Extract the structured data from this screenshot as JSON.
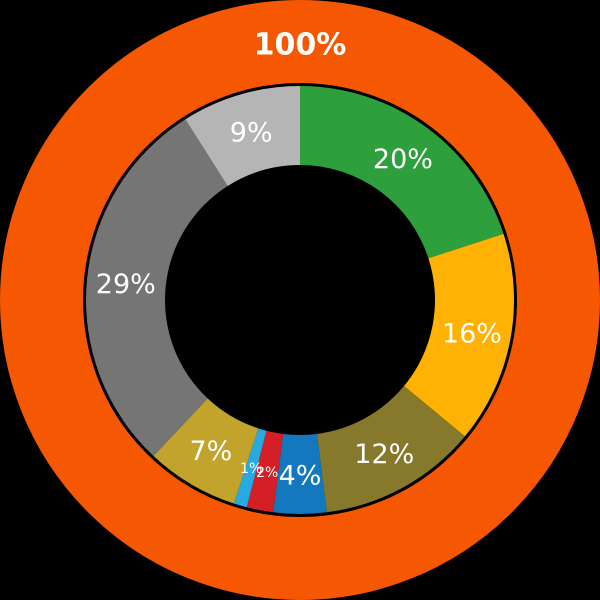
{
  "background_color": "#000000",
  "label_color": "#FFFFFF",
  "chart_data": {
    "type": "pie",
    "variant": "two-ring-donut",
    "title": "",
    "legend": "none",
    "direction": "clockwise",
    "start_angle_deg": 0,
    "outer_ring": {
      "label": "100%",
      "value": 100,
      "color": "#F55703"
    },
    "inner_ring": {
      "segments": [
        {
          "label": "20%",
          "value": 20,
          "color": "#2D9F3D"
        },
        {
          "label": "16%",
          "value": 16,
          "color": "#FFB204"
        },
        {
          "label": "12%",
          "value": 12,
          "color": "#87792B"
        },
        {
          "label": "4%",
          "value": 4,
          "color": "#1478BE"
        },
        {
          "label": "2%",
          "value": 2,
          "color": "#D41F26"
        },
        {
          "label": "1%",
          "value": 1,
          "color": "#27AAE1"
        },
        {
          "label": "7%",
          "value": 7,
          "color": "#C2A42D"
        },
        {
          "label": "29%",
          "value": 29,
          "color": "#757575"
        },
        {
          "label": "9%",
          "value": 9,
          "color": "#B5B5B5"
        }
      ]
    },
    "geometry": {
      "center": [
        300,
        300
      ],
      "outer_ring_outer_radius": 300,
      "outer_ring_inner_radius": 217,
      "inner_ring_outer_radius": 214,
      "inner_ring_inner_radius": 135,
      "segment_label_radius": 175,
      "outer_label_radius": 256
    }
  }
}
